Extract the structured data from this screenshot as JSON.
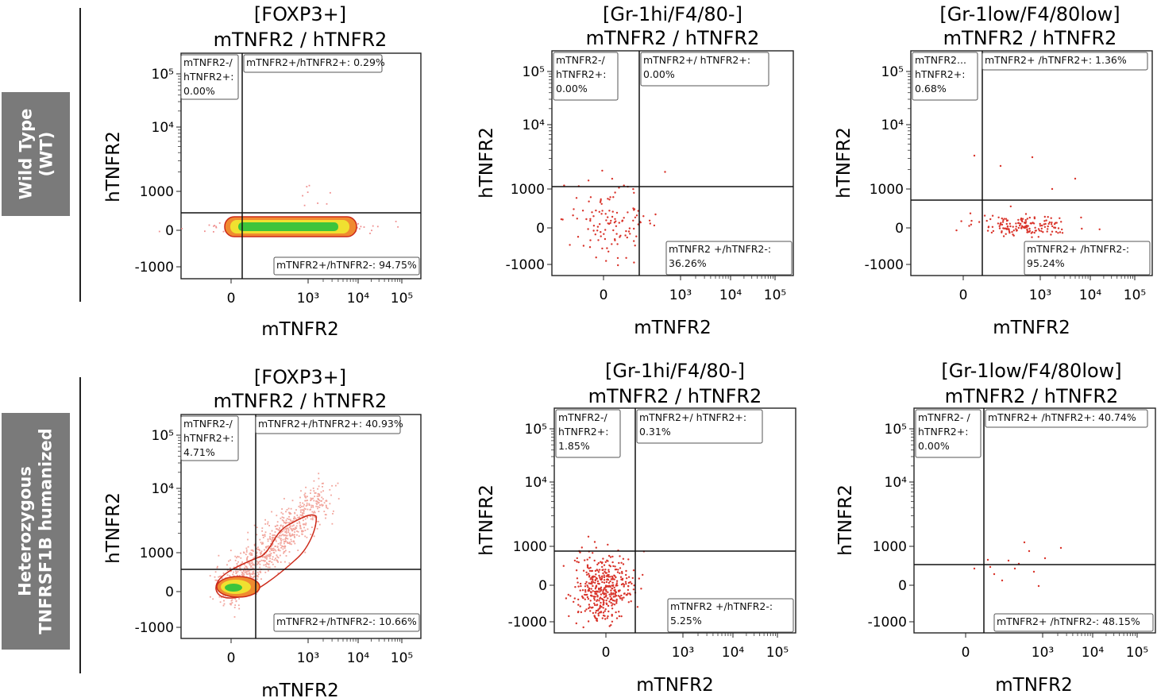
{
  "rows": [
    {
      "label_line1": "Wild Type",
      "label_line2": "(WT)"
    },
    {
      "label_line1": "Heterozygous",
      "label_line2": "TNFRSF1B humanized"
    }
  ],
  "colors": {
    "row_label_bg": "#7a7a7a",
    "dot": "#d9342b",
    "density_high": "#3cc43c",
    "density_mid": "#f0e030",
    "density_low": "#f08a30",
    "contour": "#cc2a1a"
  },
  "chart_data": [
    {
      "type": "scatter",
      "row": 0,
      "col": 0,
      "style": "density",
      "title_line1": "[FOXP3+]",
      "title_line2": "mTNFR2 / hTNFR2",
      "xlabel": "mTNFR2",
      "ylabel": "hTNFR2",
      "x_ticks": [
        "0",
        "10³",
        "10⁴",
        "10⁵"
      ],
      "y_ticks": [
        "10⁵",
        "10⁴",
        "1000",
        "0",
        "-1000"
      ],
      "gates": {
        "ul": {
          "line1": "mTNFR2-/",
          "line2": "hTNFR2+:",
          "line3": "0.00%"
        },
        "ur": {
          "line1": "mTNFR2+/hTNFR2+: 0.29%"
        },
        "lr": {
          "line1": "mTNFR2+/hTNFR2-: 94.75%"
        }
      }
    },
    {
      "type": "scatter",
      "row": 0,
      "col": 1,
      "style": "dots",
      "title_line1": "[Gr-1hi/F4/80-]",
      "title_line2": "mTNFR2 / hTNFR2",
      "xlabel": "mTNFR2",
      "ylabel": "hTNFR2",
      "x_ticks": [
        "0",
        "10³",
        "10⁴",
        "10⁵"
      ],
      "y_ticks": [
        "10⁵",
        "10⁴",
        "1000",
        "0",
        "-1000"
      ],
      "gates": {
        "ul": {
          "line1": "mTNFR2-/",
          "line2": "hTNFR2+:",
          "line3": "0.00%"
        },
        "ur": {
          "line1": "mTNFR2+/ hTNFR2+:",
          "line2": "0.00%"
        },
        "lr": {
          "line1": "mTNFR2 +/hTNFR2-:",
          "line2": "36.26%"
        }
      }
    },
    {
      "type": "scatter",
      "row": 0,
      "col": 2,
      "style": "dots",
      "title_line1": "[Gr-1low/F4/80low]",
      "title_line2": "mTNFR2 / hTNFR2",
      "xlabel": "mTNFR2",
      "ylabel": "hTNFR2",
      "x_ticks": [
        "0",
        "10³",
        "10⁴",
        "10⁵"
      ],
      "y_ticks": [
        "10⁵",
        "10⁴",
        "1000",
        "0",
        "-1000"
      ],
      "gates": {
        "ul": {
          "line1": "mTNFR2...",
          "line2": "hTNFR2+:",
          "line3": "0.68%"
        },
        "ur": {
          "line1": "mTNFR2+ /hTNFR2+: 1.36%"
        },
        "lr": {
          "line1": "mTNFR2+ /hTNFR2-:",
          "line2": "95.24%"
        }
      }
    },
    {
      "type": "scatter",
      "row": 1,
      "col": 0,
      "style": "density-diagonal",
      "title_line1": "[FOXP3+]",
      "title_line2": "mTNFR2 / hTNFR2",
      "xlabel": "mTNFR2",
      "ylabel": "hTNFR2",
      "x_ticks": [
        "0",
        "10³",
        "10⁴",
        "10⁵"
      ],
      "y_ticks": [
        "10⁵",
        "10⁴",
        "1000",
        "0",
        "-1000"
      ],
      "gates": {
        "ul": {
          "line1": "mTNFR2-/",
          "line2": "hTNFR2+:",
          "line3": "4.71%"
        },
        "ur": {
          "line1": "mTNFR2+/hTNFR2+: 40.93%"
        },
        "lr": {
          "line1": "mTNFR2+/hTNFR2-: 10.66%"
        }
      }
    },
    {
      "type": "scatter",
      "row": 1,
      "col": 1,
      "style": "dots-dense",
      "title_line1": "[Gr-1hi/F4/80-]",
      "title_line2": "mTNFR2 / hTNFR2",
      "xlabel": "mTNFR2",
      "ylabel": "hTNFR2",
      "x_ticks": [
        "0",
        "10³",
        "10⁴",
        "10⁵"
      ],
      "y_ticks": [
        "10⁵",
        "10⁴",
        "1000",
        "0",
        "-1000"
      ],
      "gates": {
        "ul": {
          "line1": "mTNFR2-/",
          "line2": "hTNFR2+:",
          "line3": "1.85%"
        },
        "ur": {
          "line1": "mTNFR2+/ hTNFR2+:",
          "line2": "0.31%"
        },
        "lr": {
          "line1": "mTNFR2 +/hTNFR2-:",
          "line2": "5.25%"
        }
      }
    },
    {
      "type": "scatter",
      "row": 1,
      "col": 2,
      "style": "dots-sparse",
      "title_line1": "[Gr-1low/F4/80low]",
      "title_line2": "mTNFR2 / hTNFR2",
      "xlabel": "mTNFR2",
      "ylabel": "hTNFR2",
      "x_ticks": [
        "0",
        "10³",
        "10⁴",
        "10⁵"
      ],
      "y_ticks": [
        "10⁵",
        "10⁴",
        "1000",
        "0",
        "-1000"
      ],
      "gates": {
        "ul": {
          "line1": "mTNFR2- /",
          "line2": "hTNFR2+:",
          "line3": "0.00%"
        },
        "ur": {
          "line1": "mTNFR2+ /hTNFR2+: 40.74%"
        },
        "lr": {
          "line1": "mTNFR2+ /hTNFR2-: 48.15%"
        }
      }
    }
  ]
}
